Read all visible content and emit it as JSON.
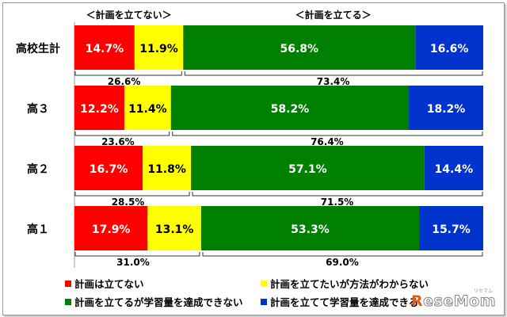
{
  "chart_data": {
    "type": "bar",
    "orientation": "horizontal-stacked-100",
    "group_headers": [
      "＜計画を立てない＞",
      "＜計画を立てる＞"
    ],
    "categories": [
      "高校生計",
      "高３",
      "高２",
      "高１"
    ],
    "series": [
      {
        "name": "計画は立てない",
        "color": "#ff0000",
        "values": [
          14.7,
          12.2,
          16.7,
          17.9
        ]
      },
      {
        "name": "計画を立てたいが方法がわからない",
        "color": "#ffff00",
        "values": [
          11.9,
          11.4,
          11.8,
          13.1
        ]
      },
      {
        "name": "計画を立てるが学習量を達成できない",
        "color": "#008000",
        "values": [
          56.8,
          58.2,
          57.1,
          53.3
        ]
      },
      {
        "name": "計画を立てて学習量を達成できる",
        "color": "#0033cc",
        "values": [
          16.6,
          18.2,
          14.4,
          15.7
        ]
      }
    ],
    "subtotals": {
      "not_planning": [
        "26.6%",
        "23.6%",
        "28.5%",
        "31.0%"
      ],
      "planning": [
        "73.4%",
        "76.4%",
        "71.5%",
        "69.0%"
      ]
    },
    "xlim": [
      0,
      100
    ],
    "legend_position": "bottom"
  },
  "watermark": {
    "brand_r": "R",
    "brand_rest": "eseMom",
    "kana": "リセマム"
  }
}
